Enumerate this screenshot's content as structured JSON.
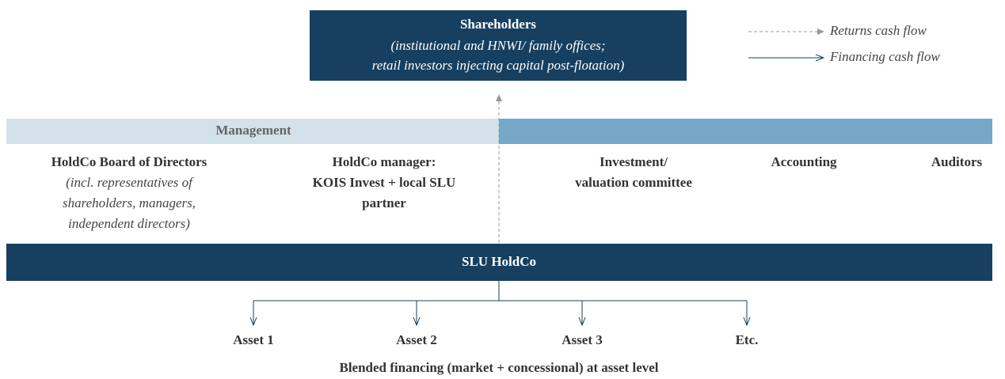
{
  "legend": {
    "returns": "Returns cash flow",
    "financing": "Financing cash flow"
  },
  "shareholders": {
    "title": "Shareholders",
    "lines": [
      "(institutional and HNWI/ family offices;",
      "retail investors injecting capital post-flotation)"
    ]
  },
  "management": {
    "label": "Management"
  },
  "columns": [
    {
      "title": [
        "HoldCo Board of Directors"
      ],
      "subtitle": [
        "(incl. representatives of",
        "shareholders, managers,",
        "independent directors)"
      ]
    },
    {
      "title": [
        "HoldCo manager:",
        "KOIS Invest + local SLU",
        "partner"
      ]
    },
    {
      "title": [
        "Investment/",
        "valuation committee"
      ]
    },
    {
      "title": [
        "Accounting"
      ]
    },
    {
      "title": [
        "Auditors"
      ]
    }
  ],
  "holdco": {
    "label": "SLU HoldCo"
  },
  "assets": [
    "Asset 1",
    "Asset 2",
    "Asset 3",
    "Etc."
  ],
  "footer": "Blended financing (market + concessional) at asset level"
}
